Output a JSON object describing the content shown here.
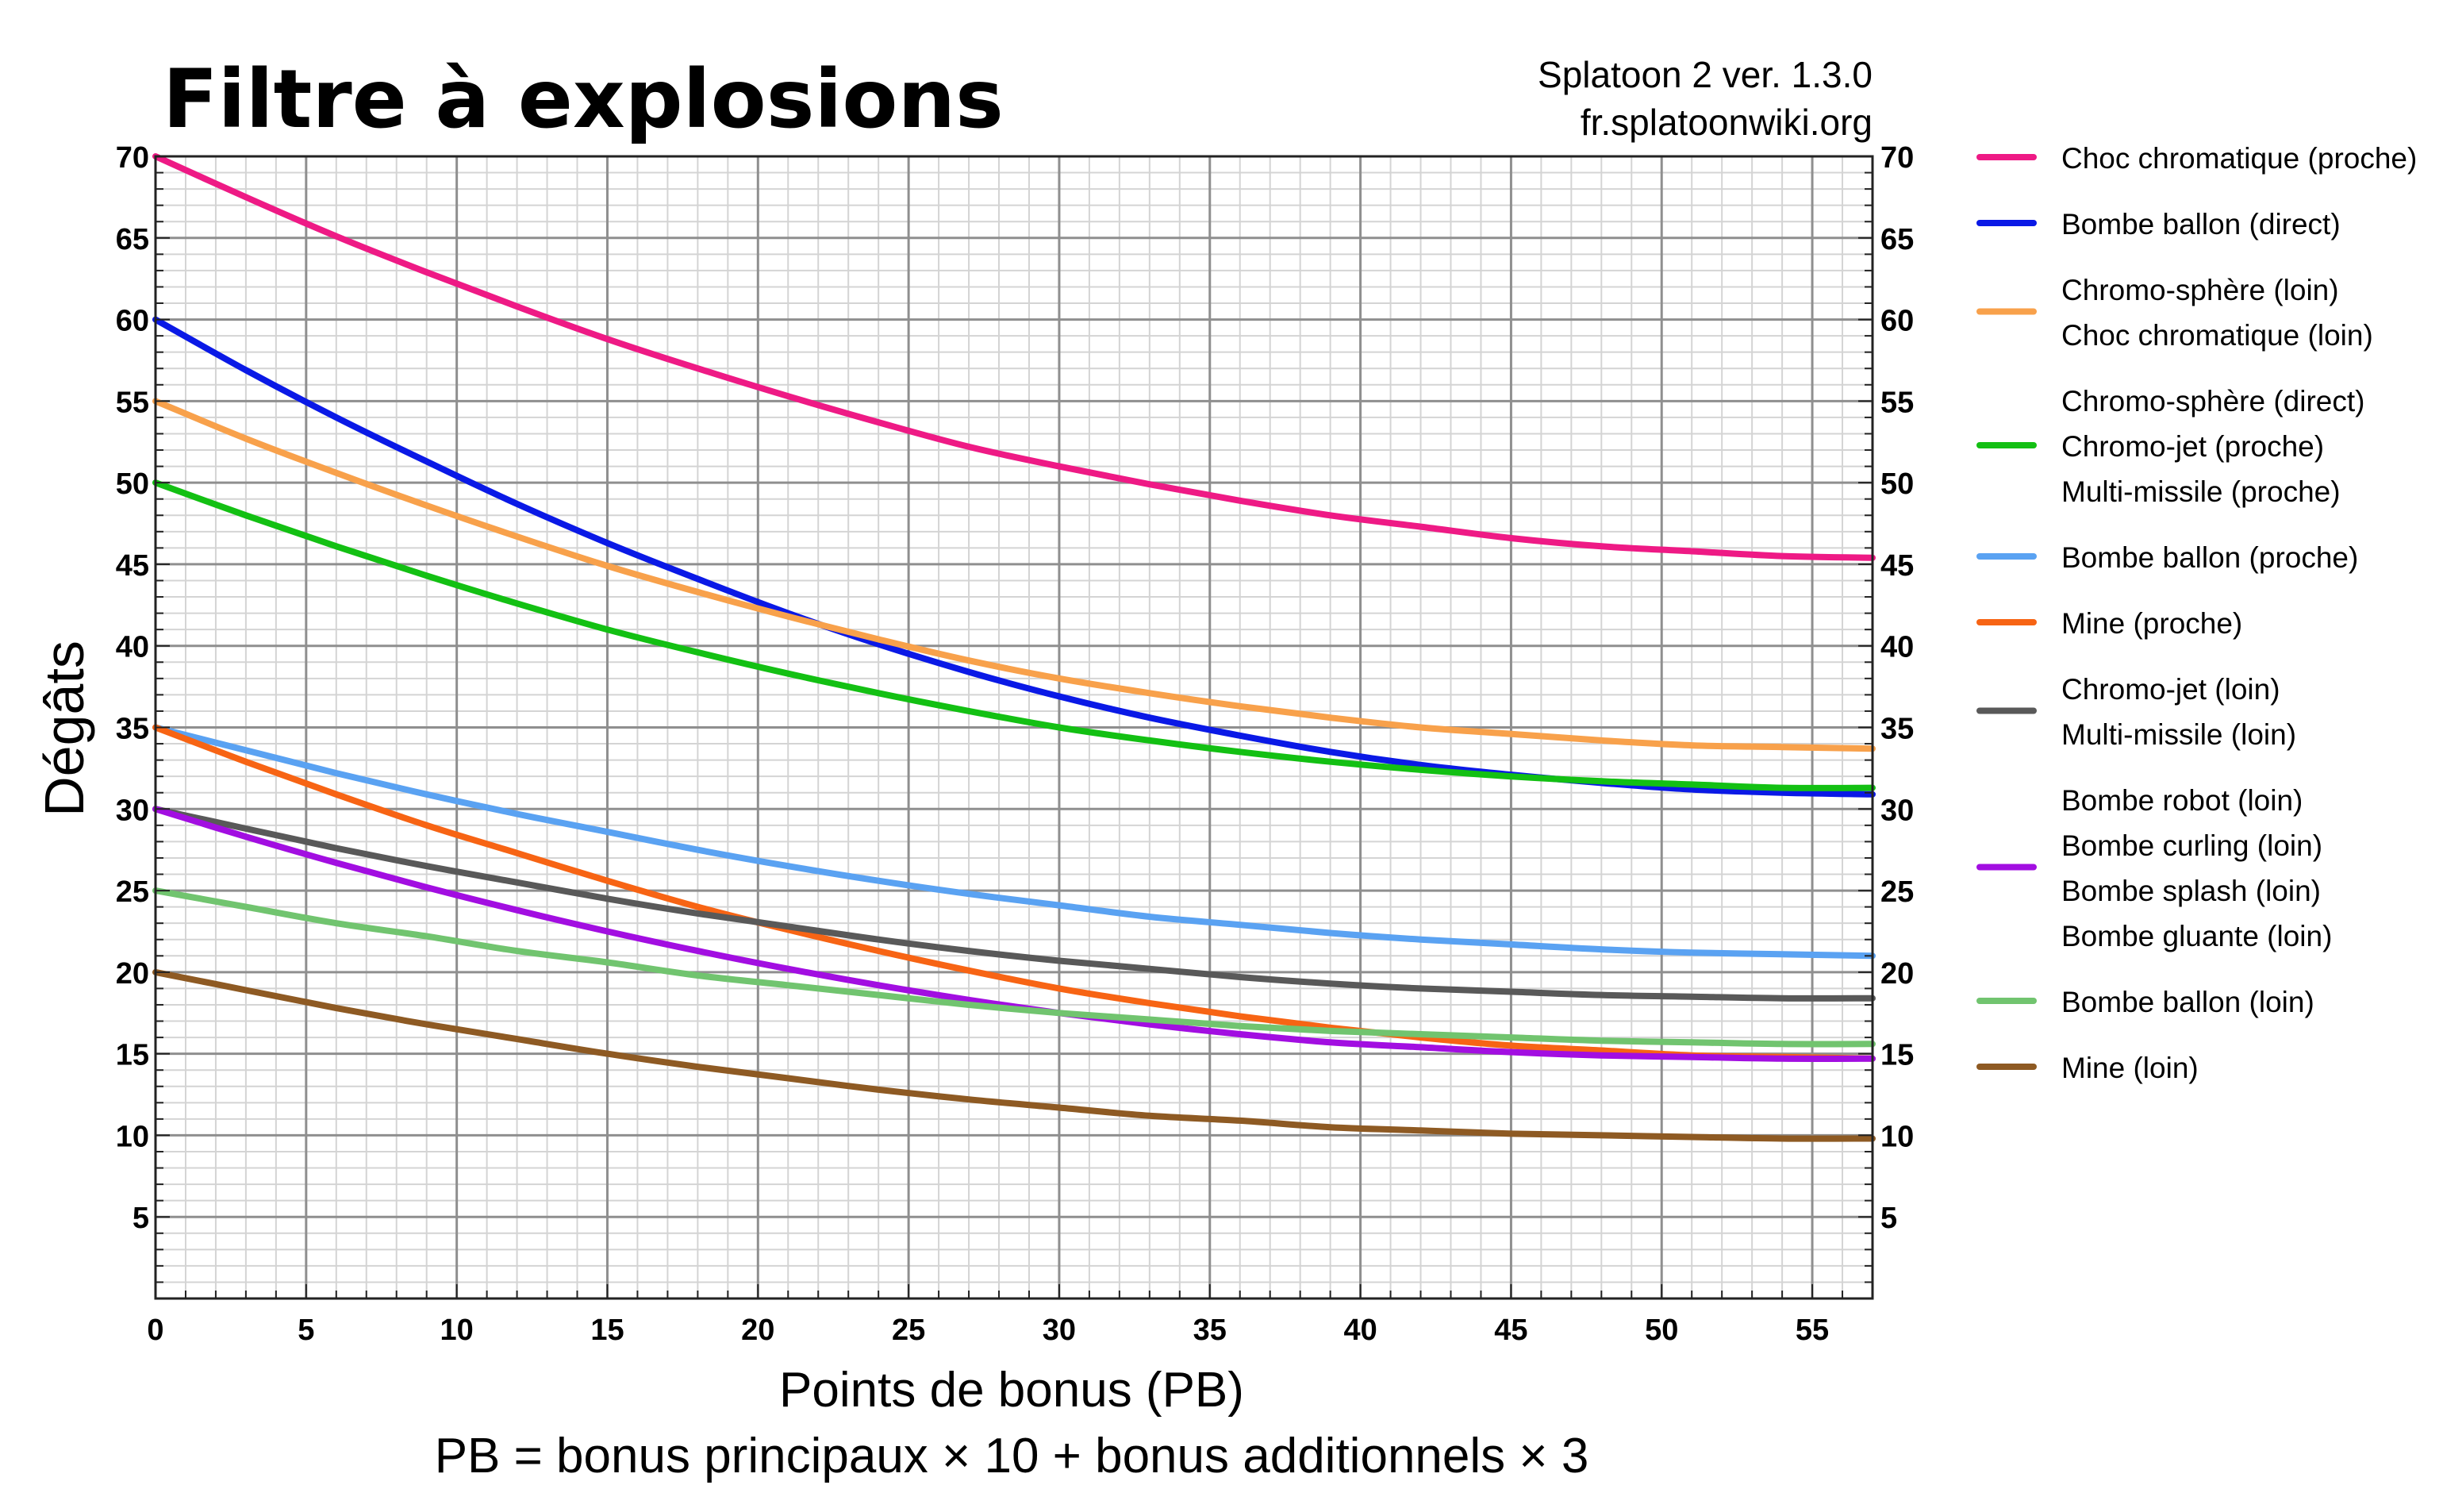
{
  "chart_data": {
    "type": "line",
    "title": "Filtre à explosions",
    "source_lines": [
      "Splatoon 2 ver. 1.3.0",
      "fr.splatoonwiki.org"
    ],
    "xlabel": "Points de bonus (PB)",
    "xlabel_note": "PB = bonus principaux × 10 + bonus additionnels × 3",
    "ylabel": "Dégâts",
    "xlim": [
      0,
      57
    ],
    "ylim": [
      0,
      70
    ],
    "x_ticks": [
      0,
      5,
      10,
      15,
      20,
      25,
      30,
      35,
      40,
      45,
      50,
      55
    ],
    "y_ticks": [
      5,
      10,
      15,
      20,
      25,
      30,
      35,
      40,
      45,
      50,
      55,
      60,
      65,
      70
    ],
    "grid": true,
    "legend_placement": "right",
    "x": [
      0,
      3,
      6,
      9,
      12,
      15,
      18,
      21,
      24,
      27,
      30,
      33,
      36,
      39,
      42,
      45,
      48,
      51,
      54,
      57
    ],
    "series": [
      {
        "labels": [
          "Choc chromatique (proche)"
        ],
        "color": "#ee1a85",
        "values": [
          70.0,
          67.5,
          65.1,
          62.9,
          60.8,
          58.8,
          57.0,
          55.3,
          53.7,
          52.2,
          51.0,
          49.9,
          48.9,
          48.0,
          47.3,
          46.6,
          46.1,
          45.8,
          45.5,
          45.4
        ]
      },
      {
        "labels": [
          "Bombe ballon (direct)"
        ],
        "color": "#0a19e6",
        "values": [
          60.0,
          56.9,
          54.0,
          51.3,
          48.7,
          46.3,
          44.1,
          42.0,
          40.1,
          38.4,
          36.9,
          35.6,
          34.5,
          33.5,
          32.7,
          32.1,
          31.6,
          31.2,
          31.0,
          30.9
        ]
      },
      {
        "labels": [
          "Chromo-sphère (loin)",
          "Choc chromatique (loin)"
        ],
        "color": "#f8a14b",
        "values": [
          55.0,
          52.7,
          50.6,
          48.6,
          46.7,
          44.9,
          43.3,
          41.8,
          40.4,
          39.1,
          38.0,
          37.1,
          36.3,
          35.6,
          35.0,
          34.6,
          34.2,
          33.9,
          33.8,
          33.7
        ]
      },
      {
        "labels": [
          "Chromo-sphère (direct)",
          "Chromo-jet (proche)",
          "Multi-missile (proche)"
        ],
        "color": "#13c013",
        "values": [
          50.0,
          48.0,
          46.1,
          44.3,
          42.6,
          41.0,
          39.6,
          38.3,
          37.1,
          36.0,
          35.0,
          34.2,
          33.5,
          32.9,
          32.4,
          32.0,
          31.7,
          31.5,
          31.3,
          31.3
        ]
      },
      {
        "labels": [
          "Bombe ballon (proche)"
        ],
        "color": "#5aa2f2",
        "values": [
          35.0,
          33.6,
          32.2,
          30.9,
          29.7,
          28.6,
          27.5,
          26.5,
          25.6,
          24.8,
          24.1,
          23.4,
          22.9,
          22.4,
          22.0,
          21.7,
          21.4,
          21.2,
          21.1,
          21.0
        ]
      },
      {
        "labels": [
          "Mine (proche)"
        ],
        "color": "#f76414",
        "values": [
          35.0,
          32.9,
          30.9,
          29.0,
          27.3,
          25.6,
          24.0,
          22.6,
          21.3,
          20.1,
          19.0,
          18.1,
          17.3,
          16.6,
          16.0,
          15.5,
          15.2,
          14.9,
          14.8,
          14.7
        ]
      },
      {
        "labels": [
          "Chromo-jet (loin)",
          "Multi-missile (loin)"
        ],
        "color": "#595959",
        "values": [
          30.0,
          28.8,
          27.6,
          26.5,
          25.5,
          24.5,
          23.6,
          22.8,
          22.0,
          21.3,
          20.7,
          20.2,
          19.7,
          19.3,
          19.0,
          18.8,
          18.6,
          18.5,
          18.4,
          18.4
        ]
      },
      {
        "labels": [
          "Bombe robot (loin)",
          "Bombe curling (loin)",
          "Bombe splash (loin)",
          "Bombe gluante (loin)"
        ],
        "color": "#a20ee1",
        "values": [
          30.0,
          28.3,
          26.7,
          25.2,
          23.8,
          22.5,
          21.3,
          20.2,
          19.2,
          18.3,
          17.5,
          16.8,
          16.2,
          15.7,
          15.4,
          15.1,
          14.9,
          14.8,
          14.7,
          14.7
        ]
      },
      {
        "labels": [
          "Bombe ballon (loin)"
        ],
        "color": "#71c46f",
        "values": [
          25.0,
          24.0,
          23.0,
          22.2,
          21.3,
          20.6,
          19.8,
          19.2,
          18.6,
          18.0,
          17.5,
          17.1,
          16.7,
          16.4,
          16.2,
          16.0,
          15.8,
          15.7,
          15.6,
          15.6
        ]
      },
      {
        "labels": [
          "Mine (loin)"
        ],
        "color": "#8e5a23",
        "values": [
          20.0,
          18.9,
          17.8,
          16.8,
          15.9,
          15.0,
          14.2,
          13.5,
          12.8,
          12.2,
          11.7,
          11.2,
          10.9,
          10.5,
          10.3,
          10.1,
          10.0,
          9.9,
          9.8,
          9.8
        ]
      }
    ]
  }
}
